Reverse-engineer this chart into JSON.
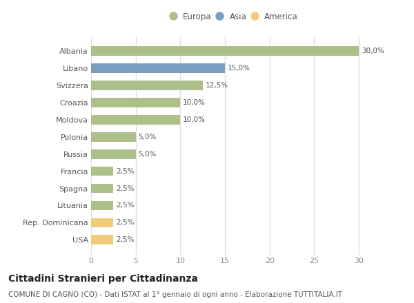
{
  "categories": [
    "Albania",
    "Libano",
    "Svizzera",
    "Croazia",
    "Moldova",
    "Polonia",
    "Russia",
    "Francia",
    "Spagna",
    "Lituania",
    "Rep. Dominicana",
    "USA"
  ],
  "values": [
    30.0,
    15.0,
    12.5,
    10.0,
    10.0,
    5.0,
    5.0,
    2.5,
    2.5,
    2.5,
    2.5,
    2.5
  ],
  "colors": [
    "#adc08a",
    "#7a9fc0",
    "#adc08a",
    "#adc08a",
    "#adc08a",
    "#adc08a",
    "#adc08a",
    "#adc08a",
    "#adc08a",
    "#adc08a",
    "#f0cc7a",
    "#f0cc7a"
  ],
  "labels": [
    "30,0%",
    "15,0%",
    "12,5%",
    "10,0%",
    "10,0%",
    "5,0%",
    "5,0%",
    "2,5%",
    "2,5%",
    "2,5%",
    "2,5%",
    "2,5%"
  ],
  "legend_labels": [
    "Europa",
    "Asia",
    "America"
  ],
  "legend_colors": [
    "#adc08a",
    "#7a9fc0",
    "#f0cc7a"
  ],
  "title": "Cittadini Stranieri per Cittadinanza",
  "subtitle": "COMUNE DI CAGNO (CO) - Dati ISTAT al 1° gennaio di ogni anno - Elaborazione TUTTITALIA.IT",
  "xlim": [
    0,
    32
  ],
  "xticks": [
    0,
    5,
    10,
    15,
    20,
    25,
    30
  ],
  "background_color": "#ffffff",
  "plot_bg_color": "#ffffff",
  "grid_color": "#e0e0e0",
  "bar_height": 0.55,
  "title_fontsize": 10,
  "subtitle_fontsize": 7.5,
  "label_fontsize": 7.5,
  "tick_fontsize": 8,
  "legend_fontsize": 8.5
}
